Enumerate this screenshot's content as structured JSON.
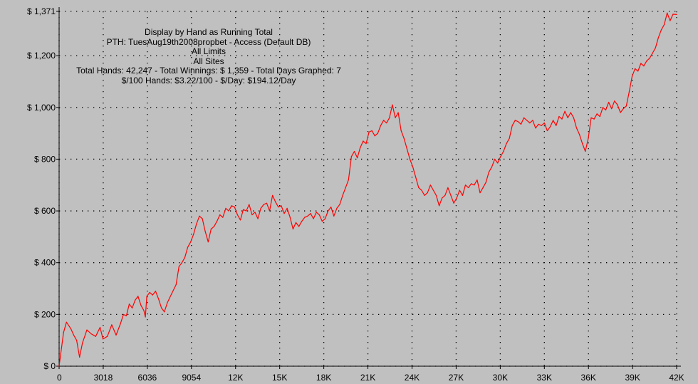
{
  "colors": {
    "background": "#c0c0c0",
    "series": "#ff0000",
    "grid": "#000000",
    "text": "#000000"
  },
  "annotation": [
    "Display by Hand as Running Total",
    "PTH: TuesAug19th2008propbet - Access (Default DB)",
    "All Limits",
    "All Sites",
    "Total Hands: 42,247 - Total Winnings: $ 1,359 - Total Days Graphed: 7",
    "$/100 Hands: $3.22/100 - $/Day: $194.12/Day"
  ],
  "chart_data": {
    "type": "line",
    "title": "Display by Hand as Running Total",
    "xlabel": "",
    "ylabel": "",
    "xlim": [
      0,
      42247
    ],
    "ylim": [
      0,
      1371
    ],
    "grid": true,
    "x_ticks": [
      {
        "value": 0,
        "label": "0"
      },
      {
        "value": 3018,
        "label": "3018"
      },
      {
        "value": 6036,
        "label": "6036"
      },
      {
        "value": 9054,
        "label": "9054"
      },
      {
        "value": 12072,
        "label": "12K"
      },
      {
        "value": 15090,
        "label": "15K"
      },
      {
        "value": 18108,
        "label": "18K"
      },
      {
        "value": 21126,
        "label": "21K"
      },
      {
        "value": 24144,
        "label": "24K"
      },
      {
        "value": 27162,
        "label": "27K"
      },
      {
        "value": 30180,
        "label": "30K"
      },
      {
        "value": 33198,
        "label": "33K"
      },
      {
        "value": 36216,
        "label": "36K"
      },
      {
        "value": 39234,
        "label": "39K"
      },
      {
        "value": 42247,
        "label": "42K"
      }
    ],
    "y_ticks": [
      {
        "value": 0,
        "label": "$ 0"
      },
      {
        "value": 200,
        "label": "$ 200"
      },
      {
        "value": 400,
        "label": "$ 400"
      },
      {
        "value": 600,
        "label": "$ 600"
      },
      {
        "value": 800,
        "label": "$ 800"
      },
      {
        "value": 1000,
        "label": "$ 1,000"
      },
      {
        "value": 1200,
        "label": "$ 1,200"
      },
      {
        "value": 1371,
        "label": "$ 1,371"
      }
    ],
    "series": [
      {
        "values": [
          [
            0,
            0
          ],
          [
            300,
            130
          ],
          [
            500,
            170
          ],
          [
            800,
            145
          ],
          [
            1000,
            120
          ],
          [
            1200,
            100
          ],
          [
            1400,
            35
          ],
          [
            1600,
            90
          ],
          [
            1900,
            140
          ],
          [
            2200,
            125
          ],
          [
            2500,
            115
          ],
          [
            2800,
            150
          ],
          [
            3000,
            105
          ],
          [
            3300,
            115
          ],
          [
            3600,
            160
          ],
          [
            3900,
            120
          ],
          [
            4200,
            165
          ],
          [
            4400,
            200
          ],
          [
            4600,
            195
          ],
          [
            4800,
            240
          ],
          [
            5000,
            225
          ],
          [
            5200,
            255
          ],
          [
            5400,
            270
          ],
          [
            5600,
            235
          ],
          [
            5800,
            215
          ],
          [
            5900,
            190
          ],
          [
            6000,
            270
          ],
          [
            6200,
            285
          ],
          [
            6400,
            275
          ],
          [
            6600,
            290
          ],
          [
            6800,
            260
          ],
          [
            7000,
            225
          ],
          [
            7200,
            210
          ],
          [
            7400,
            245
          ],
          [
            7700,
            280
          ],
          [
            8000,
            315
          ],
          [
            8200,
            385
          ],
          [
            8400,
            400
          ],
          [
            8600,
            420
          ],
          [
            8800,
            460
          ],
          [
            9000,
            480
          ],
          [
            9200,
            510
          ],
          [
            9400,
            550
          ],
          [
            9600,
            580
          ],
          [
            9800,
            570
          ],
          [
            10000,
            520
          ],
          [
            10200,
            480
          ],
          [
            10400,
            530
          ],
          [
            10600,
            540
          ],
          [
            10800,
            560
          ],
          [
            11000,
            585
          ],
          [
            11200,
            575
          ],
          [
            11400,
            610
          ],
          [
            11600,
            600
          ],
          [
            11800,
            620
          ],
          [
            12000,
            615
          ],
          [
            12200,
            585
          ],
          [
            12400,
            565
          ],
          [
            12600,
            605
          ],
          [
            12800,
            600
          ],
          [
            13000,
            625
          ],
          [
            13200,
            585
          ],
          [
            13400,
            595
          ],
          [
            13600,
            570
          ],
          [
            13800,
            610
          ],
          [
            14000,
            625
          ],
          [
            14200,
            630
          ],
          [
            14400,
            600
          ],
          [
            14600,
            660
          ],
          [
            14800,
            635
          ],
          [
            15000,
            615
          ],
          [
            15200,
            620
          ],
          [
            15400,
            590
          ],
          [
            15600,
            610
          ],
          [
            15800,
            575
          ],
          [
            16000,
            530
          ],
          [
            16200,
            555
          ],
          [
            16400,
            540
          ],
          [
            16600,
            560
          ],
          [
            16800,
            575
          ],
          [
            17000,
            580
          ],
          [
            17200,
            590
          ],
          [
            17400,
            570
          ],
          [
            17600,
            595
          ],
          [
            17800,
            585
          ],
          [
            18000,
            560
          ],
          [
            18200,
            570
          ],
          [
            18400,
            600
          ],
          [
            18600,
            615
          ],
          [
            18800,
            580
          ],
          [
            19000,
            610
          ],
          [
            19200,
            625
          ],
          [
            19400,
            660
          ],
          [
            19600,
            690
          ],
          [
            19800,
            720
          ],
          [
            20000,
            810
          ],
          [
            20200,
            830
          ],
          [
            20400,
            805
          ],
          [
            20600,
            845
          ],
          [
            20800,
            870
          ],
          [
            21000,
            860
          ],
          [
            21200,
            905
          ],
          [
            21400,
            910
          ],
          [
            21600,
            890
          ],
          [
            21800,
            900
          ],
          [
            22000,
            930
          ],
          [
            22200,
            950
          ],
          [
            22400,
            940
          ],
          [
            22600,
            960
          ],
          [
            22800,
            1010
          ],
          [
            23000,
            960
          ],
          [
            23200,
            980
          ],
          [
            23400,
            910
          ],
          [
            23600,
            880
          ],
          [
            23800,
            840
          ],
          [
            24000,
            800
          ],
          [
            24200,
            770
          ],
          [
            24400,
            730
          ],
          [
            24600,
            690
          ],
          [
            24800,
            680
          ],
          [
            25000,
            660
          ],
          [
            25200,
            670
          ],
          [
            25400,
            700
          ],
          [
            25600,
            680
          ],
          [
            25800,
            660
          ],
          [
            26000,
            620
          ],
          [
            26200,
            650
          ],
          [
            26400,
            660
          ],
          [
            26600,
            690
          ],
          [
            26800,
            660
          ],
          [
            27000,
            630
          ],
          [
            27200,
            650
          ],
          [
            27400,
            680
          ],
          [
            27600,
            660
          ],
          [
            27800,
            700
          ],
          [
            28000,
            690
          ],
          [
            28200,
            705
          ],
          [
            28400,
            700
          ],
          [
            28600,
            720
          ],
          [
            28800,
            670
          ],
          [
            29000,
            690
          ],
          [
            29200,
            710
          ],
          [
            29400,
            750
          ],
          [
            29600,
            770
          ],
          [
            29800,
            800
          ],
          [
            30000,
            785
          ],
          [
            30200,
            810
          ],
          [
            30400,
            830
          ],
          [
            30600,
            860
          ],
          [
            30800,
            880
          ],
          [
            31000,
            930
          ],
          [
            31200,
            950
          ],
          [
            31400,
            945
          ],
          [
            31600,
            935
          ],
          [
            31800,
            960
          ],
          [
            32000,
            950
          ],
          [
            32200,
            940
          ],
          [
            32400,
            950
          ],
          [
            32600,
            920
          ],
          [
            32800,
            935
          ],
          [
            33000,
            930
          ],
          [
            33200,
            940
          ],
          [
            33400,
            910
          ],
          [
            33600,
            925
          ],
          [
            33800,
            950
          ],
          [
            34000,
            930
          ],
          [
            34200,
            965
          ],
          [
            34400,
            955
          ],
          [
            34600,
            985
          ],
          [
            34800,
            960
          ],
          [
            35000,
            980
          ],
          [
            35200,
            960
          ],
          [
            35400,
            920
          ],
          [
            35600,
            895
          ],
          [
            35800,
            860
          ],
          [
            36000,
            830
          ],
          [
            36200,
            880
          ],
          [
            36400,
            960
          ],
          [
            36600,
            955
          ],
          [
            36800,
            975
          ],
          [
            37000,
            965
          ],
          [
            37200,
            1000
          ],
          [
            37400,
            990
          ],
          [
            37600,
            1020
          ],
          [
            37800,
            995
          ],
          [
            38000,
            1025
          ],
          [
            38200,
            1010
          ],
          [
            38400,
            980
          ],
          [
            38600,
            995
          ],
          [
            38800,
            1005
          ],
          [
            39000,
            1060
          ],
          [
            39200,
            1120
          ],
          [
            39400,
            1150
          ],
          [
            39600,
            1140
          ],
          [
            39800,
            1170
          ],
          [
            40000,
            1160
          ],
          [
            40200,
            1180
          ],
          [
            40400,
            1190
          ],
          [
            40600,
            1210
          ],
          [
            40800,
            1230
          ],
          [
            41000,
            1270
          ],
          [
            41200,
            1300
          ],
          [
            41400,
            1320
          ],
          [
            41600,
            1365
          ],
          [
            41800,
            1335
          ],
          [
            42000,
            1360
          ],
          [
            42247,
            1359
          ]
        ]
      }
    ]
  }
}
